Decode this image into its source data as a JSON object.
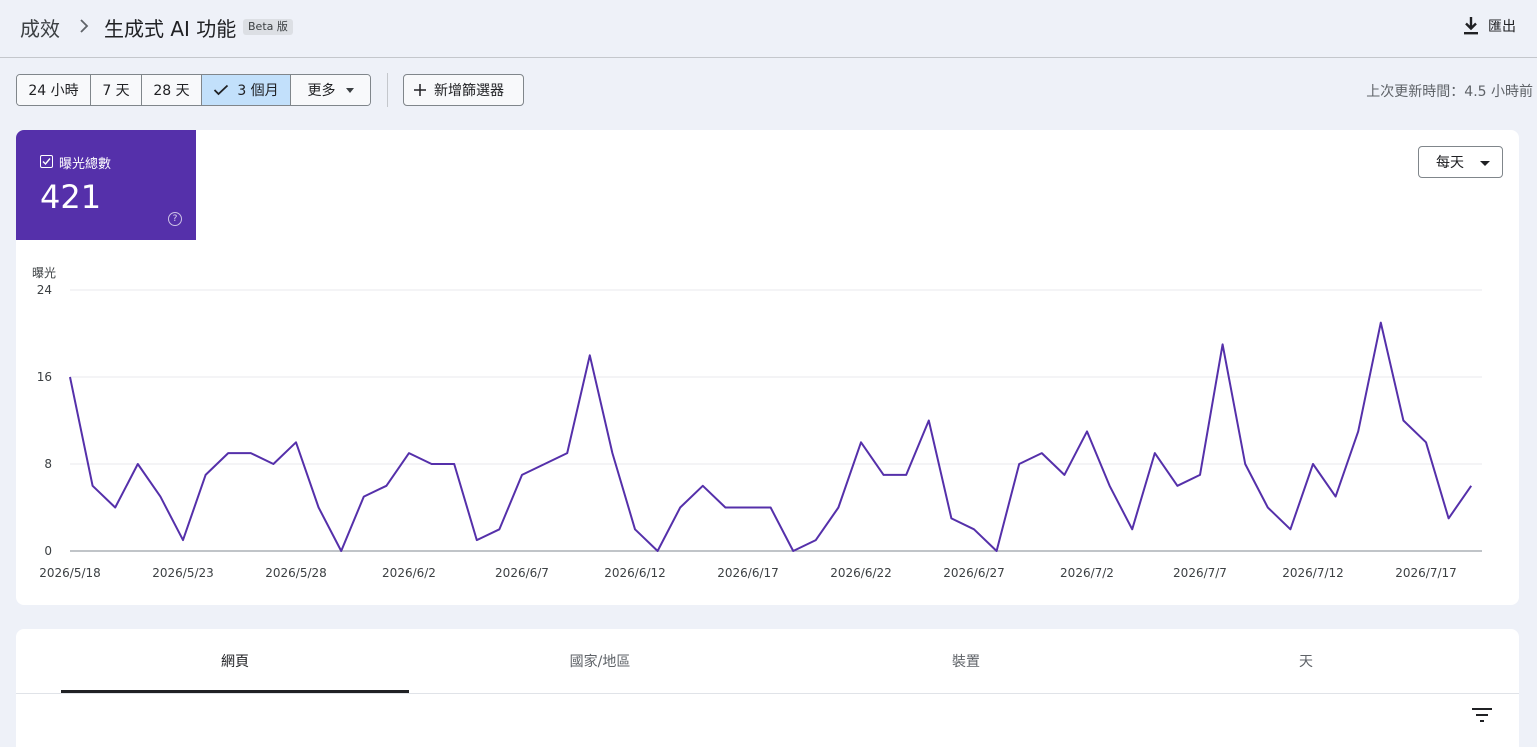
{
  "header": {
    "breadcrumb_root": "成效",
    "title": "生成式 AI 功能",
    "badge": "Beta 版",
    "export_label": "匯出"
  },
  "filters": {
    "ranges": [
      "24 小時",
      "7 天",
      "28 天",
      "3 個月",
      "更多"
    ],
    "selected": "3 個月",
    "add_filter": "新增篩選器",
    "last_updated": "上次更新時間：4.5 小時前"
  },
  "metric": {
    "label": "曝光總數",
    "value": "421",
    "help_symbol": "?",
    "color": "#5530aa"
  },
  "interval": {
    "value": "每天"
  },
  "chart_data": {
    "type": "line",
    "ylabel": "曝光",
    "ylim": [
      0,
      24
    ],
    "yticks": [
      0,
      8,
      16,
      24
    ],
    "x_tick_labels": [
      "2026/5/18",
      "2026/5/23",
      "2026/5/28",
      "2026/6/2",
      "2026/6/7",
      "2026/6/12",
      "2026/6/17",
      "2026/6/22",
      "2026/6/27",
      "2026/7/2",
      "2026/7/7",
      "2026/7/12",
      "2026/7/17"
    ],
    "start_date": "2026/5/18",
    "series": [
      {
        "color": "#5530aa",
        "values": [
          16,
          6,
          4,
          8,
          5,
          1,
          7,
          9,
          9,
          8,
          10,
          4,
          0,
          5,
          6,
          9,
          8,
          8,
          1,
          2,
          7,
          8,
          9,
          18,
          9,
          2,
          0,
          4,
          6,
          4,
          4,
          4,
          0,
          1,
          4,
          10,
          7,
          7,
          12,
          3,
          2,
          0,
          8,
          9,
          7,
          11,
          6,
          2,
          9,
          6,
          7,
          19,
          8,
          4,
          2,
          8,
          5,
          11,
          21,
          12,
          10,
          3,
          6
        ]
      }
    ],
    "grid": true
  },
  "tabs": {
    "items": [
      "網頁",
      "國家/地區",
      "裝置",
      "天"
    ],
    "active": "網頁"
  }
}
